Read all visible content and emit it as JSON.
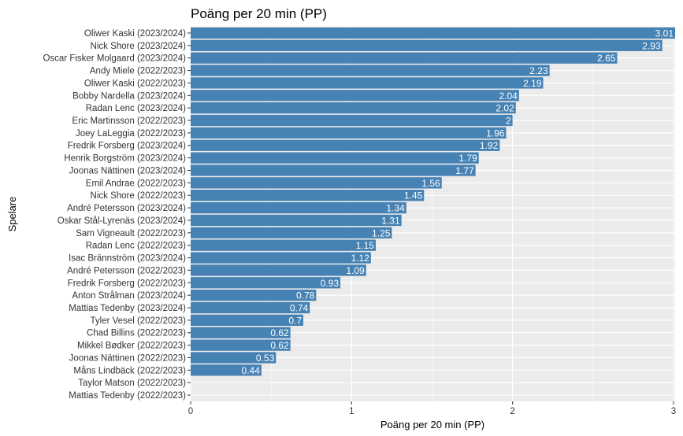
{
  "chart_data": {
    "type": "bar",
    "orientation": "horizontal",
    "title": "Poäng per 20 min (PP)",
    "xlabel": "Poäng per 20 min (PP)",
    "ylabel": "Spelare",
    "xlim": [
      0,
      3.01
    ],
    "xticks": [
      "0",
      "1",
      "2",
      "3"
    ],
    "grid": true,
    "bar_color": "#4682B4",
    "panel_color": "#EBEBEB",
    "grid_color": "#FFFFFF",
    "categories": [
      "Oliwer Kaski (2023/2024)",
      "Nick Shore (2023/2024)",
      "Oscar Fisker Molgaard (2023/2024)",
      "Andy Miele (2022/2023)",
      "Oliwer Kaski (2022/2023)",
      "Bobby Nardella (2023/2024)",
      "Radan Lenc (2023/2024)",
      "Eric Martinsson (2022/2023)",
      "Joey LaLeggia (2022/2023)",
      "Fredrik Forsberg (2023/2024)",
      "Henrik Borgström (2023/2024)",
      "Joonas Nättinen (2023/2024)",
      "Emil Andrae (2022/2023)",
      "Nick Shore (2022/2023)",
      "André Petersson (2023/2024)",
      "Oskar Stål-Lyrenäs (2023/2024)",
      "Sam Vigneault (2022/2023)",
      "Radan Lenc (2022/2023)",
      "Isac Brännström (2023/2024)",
      "André Petersson (2022/2023)",
      "Fredrik Forsberg (2022/2023)",
      "Anton Strålman (2023/2024)",
      "Mattias Tedenby (2023/2024)",
      "Tyler Vesel (2022/2023)",
      "Chad Billins (2022/2023)",
      "Mikkel Bødker (2022/2023)",
      "Joonas Nättinen (2022/2023)",
      "Måns Lindbäck (2022/2023)",
      "Taylor Matson (2022/2023)",
      "Mattias Tedenby (2022/2023)"
    ],
    "values": [
      3.01,
      2.93,
      2.65,
      2.23,
      2.19,
      2.04,
      2.02,
      2,
      1.96,
      1.92,
      1.79,
      1.77,
      1.56,
      1.45,
      1.34,
      1.31,
      1.25,
      1.15,
      1.12,
      1.09,
      0.93,
      0.78,
      0.74,
      0.7,
      0.62,
      0.62,
      0.53,
      0.44,
      null,
      null
    ],
    "value_labels": [
      "3.01",
      "2.93",
      "2.65",
      "2.23",
      "2.19",
      "2.04",
      "2.02",
      "2",
      "1.96",
      "1.92",
      "1.79",
      "1.77",
      "1.56",
      "1.45",
      "1.34",
      "1.31",
      "1.25",
      "1.15",
      "1.12",
      "1.09",
      "0.93",
      "0.78",
      "0.74",
      "0.7",
      "0.62",
      "0.62",
      "0.53",
      "0.44",
      "",
      ""
    ]
  }
}
